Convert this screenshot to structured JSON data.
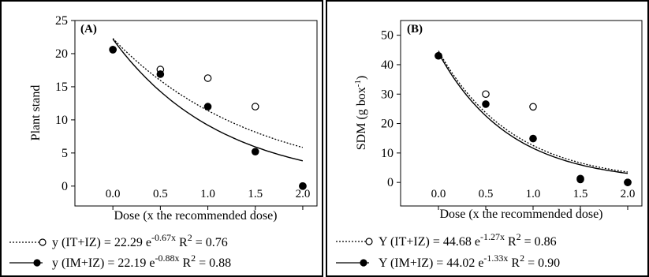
{
  "chart_data": [
    {
      "type": "scatter",
      "panel_label": "(A)",
      "xlabel": "Dose (x the recommended dose)",
      "ylabel": "Plant stand",
      "xlim": [
        -0.4,
        2.15
      ],
      "ylim": [
        -3,
        25
      ],
      "xticks": [
        0.0,
        0.5,
        1.0,
        1.5,
        2.0
      ],
      "xtick_labels": [
        "0.0",
        "0.5",
        "1.0",
        "1.5",
        "2.0"
      ],
      "yticks": [
        0,
        5,
        10,
        15,
        20,
        25
      ],
      "ytick_labels": [
        "0",
        "5",
        "10",
        "15",
        "20",
        "25"
      ],
      "series": [
        {
          "marker": "open-circle",
          "line": "dotted",
          "x": [
            0.0,
            0.5,
            1.0,
            1.5,
            2.0
          ],
          "y": [
            20.6,
            17.6,
            16.3,
            12.0,
            0.0
          ],
          "fit": {
            "a": 22.29,
            "b": -0.67
          },
          "legend": {
            "lead": "y (IT+IZ) = 22.29 e",
            "exp": "-0.67x",
            "r2_lead": "R",
            "r2_exp": "2",
            "r2_value": " = 0.76"
          }
        },
        {
          "marker": "filled-circle",
          "line": "solid",
          "x": [
            0.0,
            0.5,
            1.0,
            1.5,
            2.0
          ],
          "y": [
            20.6,
            16.9,
            12.0,
            5.2,
            0.0
          ],
          "fit": {
            "a": 22.19,
            "b": -0.88
          },
          "legend": {
            "lead": "y (IM+IZ) = 22.19 e",
            "exp": "-0.88x",
            "r2_lead": "R",
            "r2_exp": "2",
            "r2_value": " = 0.88"
          }
        }
      ]
    },
    {
      "type": "scatter",
      "panel_label": "(B)",
      "xlabel": "Dose (x the recommended dose)",
      "ylabel": "SDM (g box",
      "ylabel_sup": "-1",
      "ylabel_close": ")",
      "xlim": [
        -0.4,
        2.15
      ],
      "ylim": [
        -8,
        55
      ],
      "xticks": [
        0.0,
        0.5,
        1.0,
        1.5,
        2.0
      ],
      "xtick_labels": [
        "0.0",
        "0.5",
        "1.0",
        "1.5",
        "2.0"
      ],
      "yticks": [
        0,
        10,
        20,
        30,
        40,
        50
      ],
      "ytick_labels": [
        "0",
        "10",
        "20",
        "30",
        "40",
        "50"
      ],
      "series": [
        {
          "marker": "open-circle",
          "line": "dotted",
          "x": [
            0.0,
            0.5,
            1.0,
            1.5,
            2.0
          ],
          "y": [
            43.0,
            30.0,
            25.7,
            1.0,
            0.0
          ],
          "fit": {
            "a": 44.68,
            "b": -1.27
          },
          "legend": {
            "lead": "Y (IT+IZ) = 44.68 e",
            "exp": "-1.27x",
            "r2_lead": "R",
            "r2_exp": "2",
            "r2_value": " = 0.86"
          }
        },
        {
          "marker": "filled-circle",
          "line": "solid",
          "x": [
            0.0,
            0.5,
            1.0,
            1.5,
            2.0
          ],
          "y": [
            43.0,
            26.6,
            14.9,
            1.3,
            0.0
          ],
          "fit": {
            "a": 44.02,
            "b": -1.33
          },
          "legend": {
            "lead": "Y (IM+IZ) = 44.02 e",
            "exp": "-1.33x",
            "r2_lead": "R",
            "r2_exp": "2",
            "r2_value": " = 0.90"
          }
        }
      ]
    }
  ]
}
